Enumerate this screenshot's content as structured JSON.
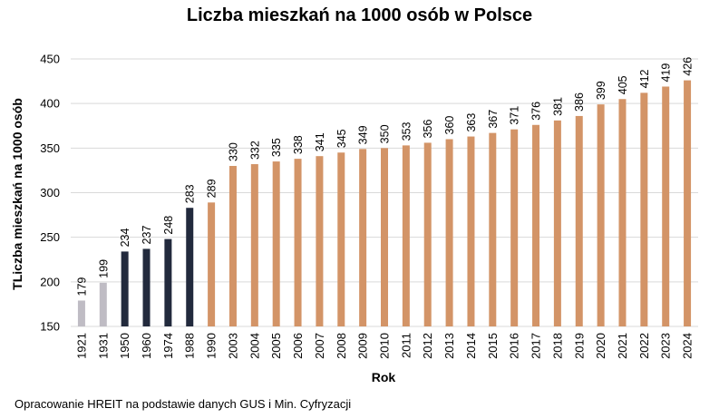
{
  "chart_data": {
    "type": "bar",
    "title": "Liczba mieszkań na 1000 osób w Polsce",
    "xlabel": "Rok",
    "ylabel": "TLiczba mieszkań na 1000 osób",
    "ylim": [
      150,
      450
    ],
    "yticks": [
      150,
      200,
      250,
      300,
      350,
      400,
      450
    ],
    "grid": true,
    "legend": "none",
    "categories": [
      "1921",
      "1931",
      "1950",
      "1960",
      "1974",
      "1988",
      "1990",
      "2003",
      "2004",
      "2005",
      "2006",
      "2007",
      "2008",
      "2009",
      "2010",
      "2011",
      "2012",
      "2013",
      "2014",
      "2015",
      "2016",
      "2017",
      "2018",
      "2019",
      "2020",
      "2021",
      "2022",
      "2023",
      "2024"
    ],
    "values": [
      179,
      199,
      234,
      237,
      248,
      283,
      289,
      330,
      332,
      335,
      338,
      341,
      345,
      349,
      350,
      353,
      356,
      360,
      363,
      367,
      371,
      376,
      381,
      386,
      399,
      405,
      412,
      419,
      426
    ],
    "colors": [
      "#bfbcc4",
      "#bfbcc4",
      "#222a3d",
      "#222a3d",
      "#222a3d",
      "#222a3d",
      "#d39467",
      "#d39467",
      "#d39467",
      "#d39467",
      "#d39467",
      "#d39467",
      "#d39467",
      "#d39467",
      "#d39467",
      "#d39467",
      "#d39467",
      "#d39467",
      "#d39467",
      "#d39467",
      "#d39467",
      "#d39467",
      "#d39467",
      "#d39467",
      "#d39467",
      "#d39467",
      "#d39467",
      "#d39467",
      "#d39467"
    ]
  },
  "source_note": "Opracowanie HREIT na podstawie danych GUS i Min. Cyfryzacji"
}
